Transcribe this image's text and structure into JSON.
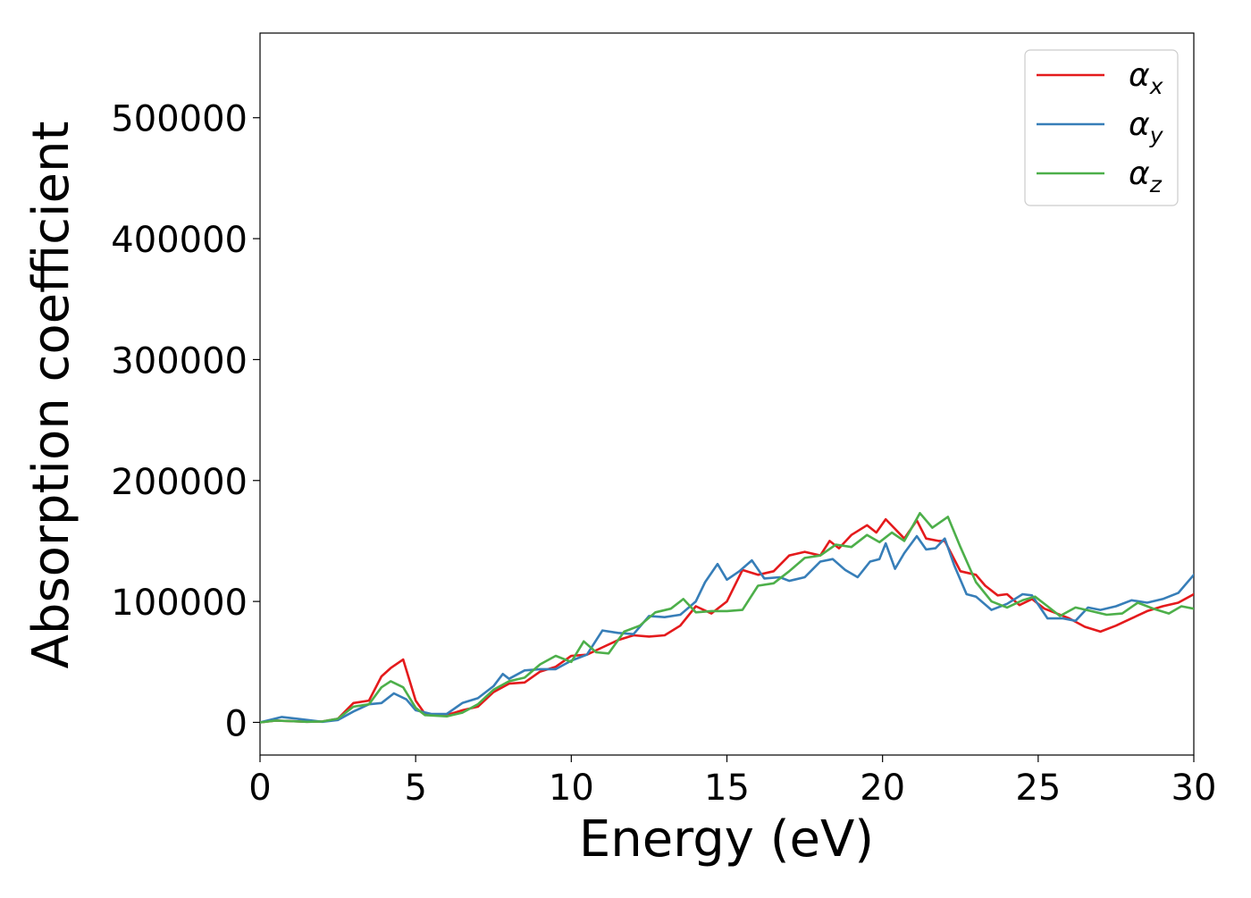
{
  "chart_data": {
    "type": "line",
    "title": "",
    "xlabel": "Energy (eV)",
    "ylabel": "Absorption coefficient",
    "xlim": [
      0,
      30
    ],
    "ylim": [
      -27000,
      570000
    ],
    "xticks": [
      0,
      5,
      10,
      15,
      20,
      25,
      30
    ],
    "xtick_labels": [
      "0",
      "5",
      "10",
      "15",
      "20",
      "25",
      "30"
    ],
    "yticks": [
      0,
      100000,
      200000,
      300000,
      400000,
      500000
    ],
    "ytick_labels": [
      "0",
      "100000",
      "200000",
      "300000",
      "400000",
      "500000"
    ],
    "grid": false,
    "legend_position": "top-right",
    "series": [
      {
        "name": "αx",
        "label_base": "α",
        "label_sub": "x",
        "color": "#e41a1c",
        "points": [
          [
            0,
            0
          ],
          [
            0.5,
            1500
          ],
          [
            1,
            1000
          ],
          [
            1.5,
            500
          ],
          [
            2,
            800
          ],
          [
            2.5,
            3000
          ],
          [
            3,
            16000
          ],
          [
            3.5,
            18000
          ],
          [
            3.9,
            38000
          ],
          [
            4.2,
            45000
          ],
          [
            4.6,
            52000
          ],
          [
            5,
            18000
          ],
          [
            5.3,
            7000
          ],
          [
            6,
            6000
          ],
          [
            6.5,
            10000
          ],
          [
            7,
            13000
          ],
          [
            7.5,
            25000
          ],
          [
            8,
            32000
          ],
          [
            8.5,
            33000
          ],
          [
            9,
            42000
          ],
          [
            9.5,
            46000
          ],
          [
            10,
            55000
          ],
          [
            10.5,
            56000
          ],
          [
            11,
            62000
          ],
          [
            11.5,
            68000
          ],
          [
            12,
            72000
          ],
          [
            12.5,
            71000
          ],
          [
            13,
            72000
          ],
          [
            13.5,
            80000
          ],
          [
            14,
            96000
          ],
          [
            14.5,
            90000
          ],
          [
            15,
            100000
          ],
          [
            15.5,
            126000
          ],
          [
            16,
            122000
          ],
          [
            16.5,
            125000
          ],
          [
            17,
            138000
          ],
          [
            17.5,
            141000
          ],
          [
            18,
            138000
          ],
          [
            18.3,
            150000
          ],
          [
            18.6,
            144000
          ],
          [
            19,
            155000
          ],
          [
            19.5,
            163000
          ],
          [
            19.8,
            157000
          ],
          [
            20.1,
            168000
          ],
          [
            20.4,
            160000
          ],
          [
            20.7,
            152000
          ],
          [
            21.1,
            167000
          ],
          [
            21.4,
            152000
          ],
          [
            21.8,
            150000
          ],
          [
            22,
            150000
          ],
          [
            22.5,
            125000
          ],
          [
            23,
            122000
          ],
          [
            23.3,
            113000
          ],
          [
            23.7,
            105000
          ],
          [
            24,
            106000
          ],
          [
            24.4,
            97000
          ],
          [
            24.8,
            102000
          ],
          [
            25.2,
            94000
          ],
          [
            25.6,
            90000
          ],
          [
            26,
            86000
          ],
          [
            26.5,
            79000
          ],
          [
            27,
            75000
          ],
          [
            27.5,
            80000
          ],
          [
            28,
            86000
          ],
          [
            28.5,
            92000
          ],
          [
            29,
            96000
          ],
          [
            29.5,
            99000
          ],
          [
            30,
            106000
          ]
        ]
      },
      {
        "name": "αy",
        "label_base": "α",
        "label_sub": "y",
        "color": "#377eb8",
        "points": [
          [
            0,
            0
          ],
          [
            0.7,
            4500
          ],
          [
            1.2,
            3000
          ],
          [
            2,
            500
          ],
          [
            2.5,
            2000
          ],
          [
            3,
            9000
          ],
          [
            3.5,
            15000
          ],
          [
            3.9,
            16000
          ],
          [
            4.3,
            24000
          ],
          [
            4.7,
            19000
          ],
          [
            5,
            10000
          ],
          [
            5.5,
            7000
          ],
          [
            6,
            7000
          ],
          [
            6.5,
            16000
          ],
          [
            7,
            20000
          ],
          [
            7.5,
            30000
          ],
          [
            7.8,
            40000
          ],
          [
            8,
            36000
          ],
          [
            8.5,
            43000
          ],
          [
            9,
            44000
          ],
          [
            9.5,
            44000
          ],
          [
            10,
            51000
          ],
          [
            10.5,
            56000
          ],
          [
            11,
            76000
          ],
          [
            11.5,
            74000
          ],
          [
            12,
            73000
          ],
          [
            12.5,
            88000
          ],
          [
            13,
            87000
          ],
          [
            13.5,
            89000
          ],
          [
            14,
            100000
          ],
          [
            14.3,
            116000
          ],
          [
            14.7,
            131000
          ],
          [
            15,
            118000
          ],
          [
            15.4,
            125000
          ],
          [
            15.8,
            134000
          ],
          [
            16.2,
            119000
          ],
          [
            16.7,
            120000
          ],
          [
            17,
            117000
          ],
          [
            17.5,
            120000
          ],
          [
            18,
            133000
          ],
          [
            18.4,
            135000
          ],
          [
            18.8,
            126000
          ],
          [
            19.2,
            120000
          ],
          [
            19.6,
            133000
          ],
          [
            19.9,
            135000
          ],
          [
            20.1,
            148000
          ],
          [
            20.4,
            127000
          ],
          [
            20.7,
            140000
          ],
          [
            21.1,
            154000
          ],
          [
            21.4,
            143000
          ],
          [
            21.7,
            144000
          ],
          [
            22,
            152000
          ],
          [
            22.3,
            130000
          ],
          [
            22.7,
            106000
          ],
          [
            23,
            104000
          ],
          [
            23.5,
            93000
          ],
          [
            24,
            98000
          ],
          [
            24.5,
            106000
          ],
          [
            24.8,
            105000
          ],
          [
            25.3,
            86000
          ],
          [
            25.8,
            86000
          ],
          [
            26.2,
            84000
          ],
          [
            26.6,
            95000
          ],
          [
            27,
            93000
          ],
          [
            27.5,
            96000
          ],
          [
            28,
            101000
          ],
          [
            28.5,
            99000
          ],
          [
            29,
            102000
          ],
          [
            29.5,
            107000
          ],
          [
            30,
            122000
          ]
        ]
      },
      {
        "name": "αz",
        "label_base": "α",
        "label_sub": "z",
        "color": "#4daf4a",
        "points": [
          [
            0,
            0
          ],
          [
            0.5,
            1500
          ],
          [
            1,
            1000
          ],
          [
            1.5,
            500
          ],
          [
            2,
            800
          ],
          [
            2.5,
            3000
          ],
          [
            3,
            13000
          ],
          [
            3.5,
            15000
          ],
          [
            3.9,
            29000
          ],
          [
            4.2,
            34000
          ],
          [
            4.6,
            29000
          ],
          [
            5,
            12000
          ],
          [
            5.3,
            6000
          ],
          [
            6,
            5000
          ],
          [
            6.5,
            8000
          ],
          [
            7,
            15000
          ],
          [
            7.5,
            27000
          ],
          [
            8,
            34000
          ],
          [
            8.5,
            37000
          ],
          [
            9,
            48000
          ],
          [
            9.5,
            55000
          ],
          [
            10,
            50000
          ],
          [
            10.4,
            67000
          ],
          [
            10.8,
            58000
          ],
          [
            11.2,
            57000
          ],
          [
            11.7,
            75000
          ],
          [
            12.2,
            80000
          ],
          [
            12.7,
            91000
          ],
          [
            13.2,
            94000
          ],
          [
            13.6,
            102000
          ],
          [
            14,
            91000
          ],
          [
            14.5,
            92000
          ],
          [
            15,
            92000
          ],
          [
            15.5,
            93000
          ],
          [
            16,
            113000
          ],
          [
            16.5,
            115000
          ],
          [
            17,
            125000
          ],
          [
            17.5,
            136000
          ],
          [
            18,
            138000
          ],
          [
            18.5,
            147000
          ],
          [
            19,
            145000
          ],
          [
            19.5,
            155000
          ],
          [
            19.9,
            149000
          ],
          [
            20.3,
            157000
          ],
          [
            20.7,
            150000
          ],
          [
            21.2,
            173000
          ],
          [
            21.6,
            161000
          ],
          [
            22.1,
            170000
          ],
          [
            22.5,
            145000
          ],
          [
            23,
            116000
          ],
          [
            23.5,
            100000
          ],
          [
            24,
            95000
          ],
          [
            24.5,
            101000
          ],
          [
            24.9,
            104000
          ],
          [
            25.3,
            96000
          ],
          [
            25.7,
            88000
          ],
          [
            26.2,
            95000
          ],
          [
            26.7,
            92000
          ],
          [
            27.2,
            89000
          ],
          [
            27.7,
            90000
          ],
          [
            28.2,
            99000
          ],
          [
            28.7,
            94000
          ],
          [
            29.2,
            90000
          ],
          [
            29.6,
            96000
          ],
          [
            30,
            94000
          ]
        ]
      }
    ]
  }
}
